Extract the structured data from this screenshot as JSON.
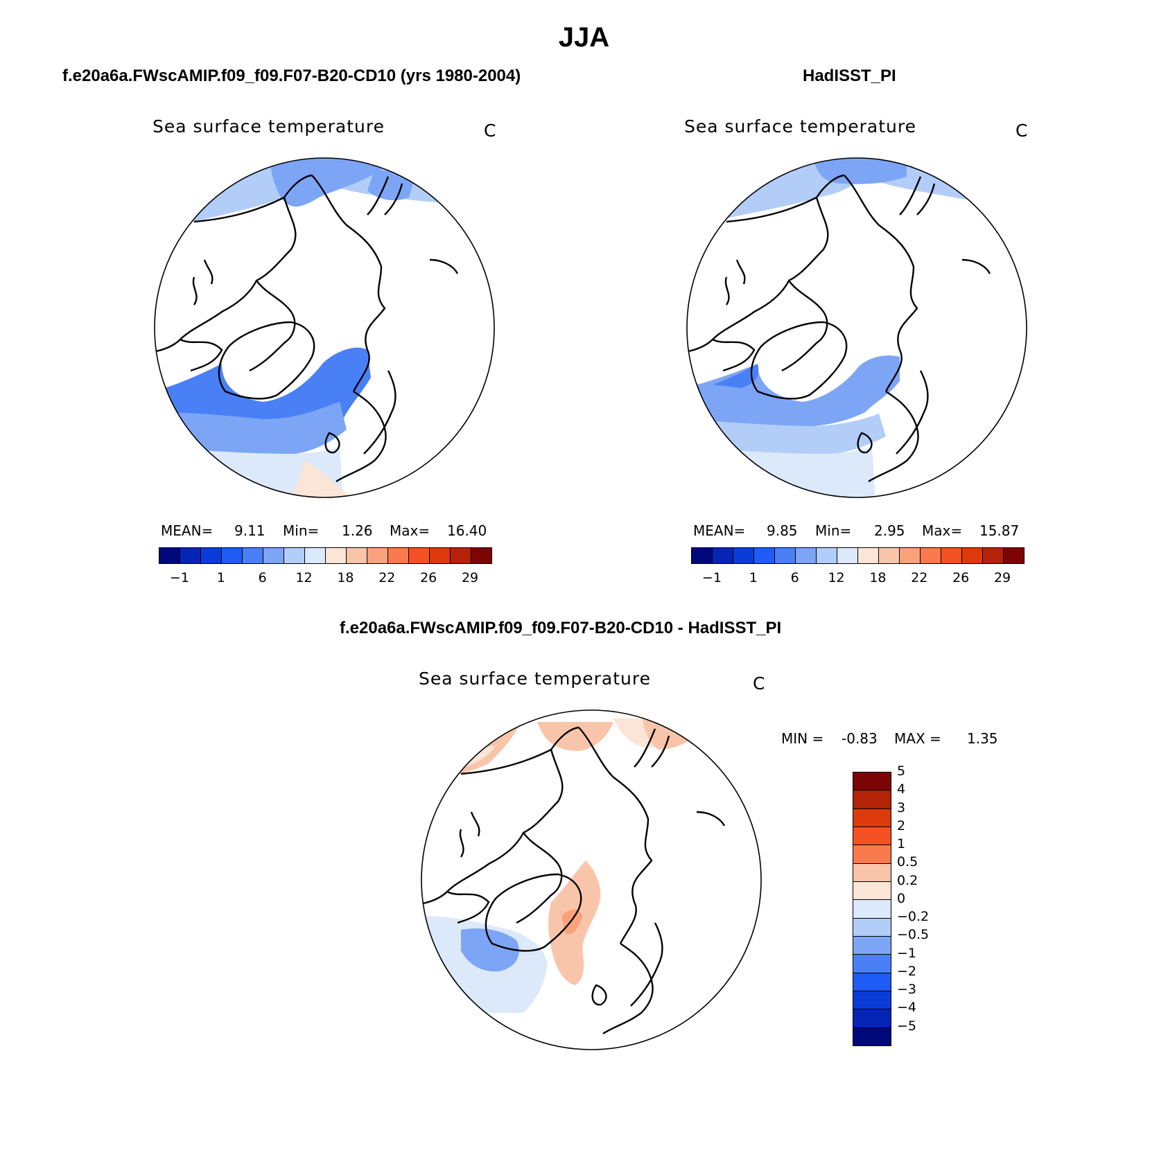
{
  "title": "JJA",
  "panels": {
    "model": {
      "case": "f.e20a6a.FWscAMIP.f09_f09.F07-B20-CD10 (yrs 1980-2004)",
      "variable": "Sea surface temperature",
      "unit": "C",
      "mean_label": "MEAN=",
      "mean": "9.11",
      "min_label": "Min=",
      "min": "1.26",
      "max_label": "Max=",
      "max": "16.40"
    },
    "obs": {
      "case": "HadISST_PI",
      "variable": "Sea surface temperature",
      "unit": "C",
      "mean_label": "MEAN=",
      "mean": "9.85",
      "min_label": "Min=",
      "min": "2.95",
      "max_label": "Max=",
      "max": "15.87"
    },
    "diff": {
      "case": "f.e20a6a.FWscAMIP.f09_f09.F07-B20-CD10 - HadISST_PI",
      "variable": "Sea surface temperature",
      "unit": "C",
      "min_label": "MIN =",
      "min": "-0.83",
      "max_label": "MAX =",
      "max": "1.35"
    }
  },
  "colorbar_abs": {
    "colors": [
      "#00097c",
      "#0526b4",
      "#0a3dd8",
      "#1f5cf5",
      "#4a80f5",
      "#7da5f5",
      "#b2cdf8",
      "#dbe9fa",
      "#fbe5d6",
      "#f9c5aa",
      "#f9a27c",
      "#f97a4c",
      "#f45224",
      "#dc3a0c",
      "#b42308",
      "#7c0404"
    ],
    "labels": [
      "−1",
      "1",
      "6",
      "12",
      "18",
      "22",
      "26",
      "29"
    ]
  },
  "colorbar_diff": {
    "colors": [
      "#00097c",
      "#0526b4",
      "#0a3dd8",
      "#1f5cf5",
      "#4a80f5",
      "#7da5f5",
      "#b2cdf8",
      "#dbe9fa",
      "#fbe5d6",
      "#f9c5aa",
      "#f97a4c",
      "#f45224",
      "#dc3a0c",
      "#b42308",
      "#7c0404"
    ],
    "labels": [
      "−5",
      "−4",
      "−3",
      "−2",
      "−1",
      "−0.5",
      "−0.2",
      "0",
      "0.2",
      "0.5",
      "1",
      "2",
      "3",
      "4",
      "5"
    ]
  },
  "fills": {
    "c1": "#b2cdf8",
    "c2": "#7da5f5",
    "c3": "#4a80f5",
    "c4": "#dbe9fa",
    "o1": "#fbe5d6",
    "o2": "#f9c5aa",
    "o3": "#f9a27c"
  }
}
